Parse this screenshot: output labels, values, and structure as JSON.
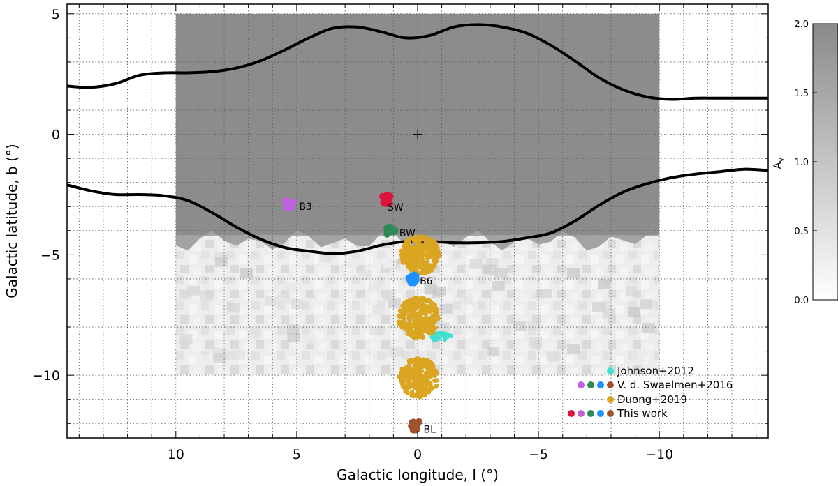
{
  "chart_data": {
    "type": "scatter",
    "xlabel": "Galactic longitude, l (°)",
    "ylabel": "Galactic latitude, b (°)",
    "xlim": [
      14.5,
      -14.5
    ],
    "ylim": [
      -12.6,
      5.4
    ],
    "x_ticks": [
      10,
      5,
      0,
      -5,
      -10
    ],
    "x_tick_labels": [
      "10",
      "5",
      "0",
      "−5",
      "−10"
    ],
    "y_ticks": [
      5,
      0,
      -5,
      -10
    ],
    "y_tick_labels": [
      "5",
      "0",
      "−5",
      "−10"
    ],
    "grid": true,
    "extinction_map": {
      "l_range": [
        10,
        -10
      ],
      "b_range": [
        -10,
        5
      ],
      "saturated_above_b": -4.2
    },
    "colorbar": {
      "label": "A_V",
      "range": [
        0.0,
        2.0
      ],
      "ticks": [
        0.0,
        0.5,
        1.0,
        1.5,
        2.0
      ],
      "tick_labels": [
        "0.0",
        "0.5",
        "1.0",
        "1.5",
        "2.0"
      ]
    },
    "contour_north": {
      "l": [
        14.5,
        13.5,
        12.5,
        11.5,
        10.5,
        9.5,
        8.5,
        7.5,
        6.5,
        5.5,
        4.5,
        3.5,
        2.5,
        1.5,
        0.5,
        -0.5,
        -1.5,
        -2.5,
        -3.5,
        -4.5,
        -5.5,
        -6.5,
        -7.5,
        -8.5,
        -9.5,
        -10.5,
        -11.5,
        -12.5,
        -13.5,
        -14.5
      ],
      "b": [
        2.0,
        1.95,
        2.1,
        2.45,
        2.55,
        2.55,
        2.6,
        2.75,
        3.05,
        3.5,
        4.0,
        4.4,
        4.45,
        4.25,
        4.0,
        4.1,
        4.45,
        4.55,
        4.45,
        4.2,
        3.7,
        3.05,
        2.35,
        1.85,
        1.55,
        1.45,
        1.5,
        1.5,
        1.5,
        1.5
      ]
    },
    "contour_south": {
      "l": [
        14.5,
        13.5,
        12.5,
        11.5,
        10.5,
        9.5,
        8.5,
        7.5,
        6.5,
        5.5,
        4.5,
        3.5,
        2.5,
        1.5,
        0.5,
        -0.5,
        -1.5,
        -2.5,
        -3.5,
        -4.5,
        -5.5,
        -6.5,
        -7.5,
        -8.5,
        -9.5,
        -10.5,
        -11.5,
        -12.5,
        -13.5,
        -14.5
      ],
      "b": [
        -2.1,
        -2.35,
        -2.5,
        -2.5,
        -2.55,
        -2.75,
        -3.25,
        -3.85,
        -4.35,
        -4.7,
        -4.85,
        -4.95,
        -4.85,
        -4.6,
        -4.45,
        -4.45,
        -4.5,
        -4.5,
        -4.45,
        -4.3,
        -4.1,
        -3.6,
        -2.95,
        -2.4,
        -2.05,
        -1.8,
        -1.65,
        -1.55,
        -1.45,
        -1.5
      ]
    },
    "series": [
      {
        "name": "Johnson+2012",
        "color": "#40e0d0",
        "fields": [
          {
            "l": -0.95,
            "b": -8.4,
            "spread": 0.45
          }
        ]
      },
      {
        "name": "V. d. Swaelmen+2016",
        "colors": [
          "#c060e0",
          "#2e8b57",
          "#1e90ff",
          "#a0522d"
        ]
      },
      {
        "name": "Duong+2019",
        "color": "#daa520",
        "fields": [
          {
            "l": -0.1,
            "b": -5.0,
            "spread": 0.85
          },
          {
            "l": -0.05,
            "b": -7.6,
            "spread": 0.9
          },
          {
            "l": -0.05,
            "b": -10.1,
            "spread": 0.85
          }
        ]
      },
      {
        "name": "This work",
        "colors": [
          "#dc143c",
          "#c060e0",
          "#2e8b57",
          "#1e90ff",
          "#a0522d"
        ]
      }
    ],
    "fields": [
      {
        "label": "B3",
        "l": 5.3,
        "b": -2.9,
        "color": "#c060e0"
      },
      {
        "label": "SW",
        "l": 1.3,
        "b": -2.7,
        "color": "#dc143c"
      },
      {
        "label": "BW",
        "l": 1.1,
        "b": -4.0,
        "color": "#2e8b57"
      },
      {
        "label": "B6",
        "l": 0.2,
        "b": -6.0,
        "color": "#1e90ff"
      },
      {
        "label": "BL",
        "l": 0.1,
        "b": -12.1,
        "color": "#a0522d"
      }
    ],
    "galactic_center": {
      "l": 0,
      "b": 0
    }
  }
}
